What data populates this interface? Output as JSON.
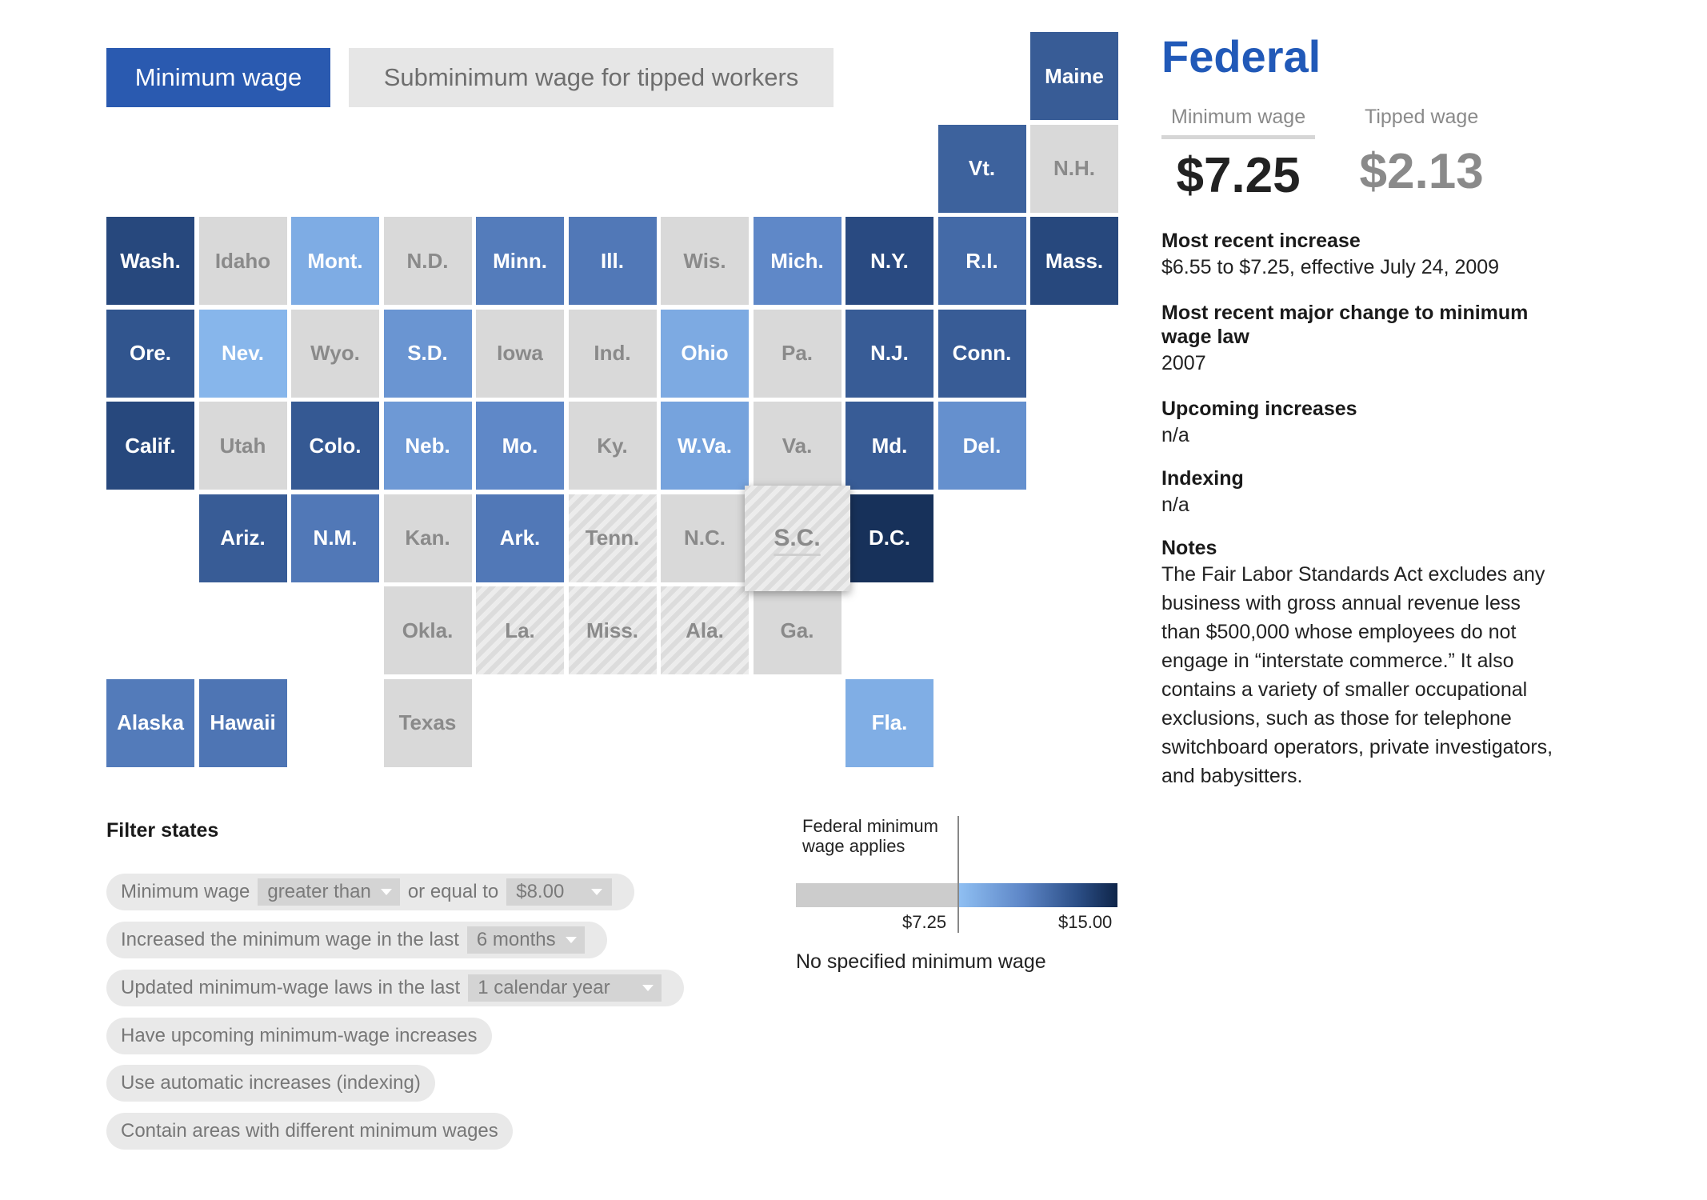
{
  "toggle": {
    "minimum_wage": "Minimum wage",
    "tipped": "Subminimum wage for tipped workers"
  },
  "states": [
    {
      "abbr": "Maine",
      "value": 11.0
    },
    {
      "abbr": "Vt.",
      "value": 10.78
    },
    {
      "abbr": "N.H.",
      "value": 7.25
    },
    {
      "abbr": "Wash.",
      "value": 12.0
    },
    {
      "abbr": "Idaho",
      "value": 7.25
    },
    {
      "abbr": "Mont.",
      "value": 8.5
    },
    {
      "abbr": "N.D.",
      "value": 7.25
    },
    {
      "abbr": "Minn.",
      "value": 9.86
    },
    {
      "abbr": "Ill.",
      "value": 10.0
    },
    {
      "abbr": "Wis.",
      "value": 7.25
    },
    {
      "abbr": "Mich.",
      "value": 9.45
    },
    {
      "abbr": "N.Y.",
      "value": 11.8
    },
    {
      "abbr": "R.I.",
      "value": 10.5
    },
    {
      "abbr": "Mass.",
      "value": 12.0
    },
    {
      "abbr": "Ore.",
      "value": 11.25
    },
    {
      "abbr": "Nev.",
      "value": 8.25
    },
    {
      "abbr": "Wyo.",
      "value": 7.25
    },
    {
      "abbr": "S.D.",
      "value": 9.1
    },
    {
      "abbr": "Iowa",
      "value": 7.25
    },
    {
      "abbr": "Ind.",
      "value": 7.25
    },
    {
      "abbr": "Ohio",
      "value": 8.55
    },
    {
      "abbr": "Pa.",
      "value": 7.25
    },
    {
      "abbr": "N.J.",
      "value": 11.0
    },
    {
      "abbr": "Conn.",
      "value": 11.0
    },
    {
      "abbr": "Calif.",
      "value": 12.0
    },
    {
      "abbr": "Utah",
      "value": 7.25
    },
    {
      "abbr": "Colo.",
      "value": 11.1
    },
    {
      "abbr": "Neb.",
      "value": 9.0
    },
    {
      "abbr": "Mo.",
      "value": 9.45
    },
    {
      "abbr": "Ky.",
      "value": 7.25
    },
    {
      "abbr": "W.Va.",
      "value": 8.75
    },
    {
      "abbr": "Va.",
      "value": 7.25
    },
    {
      "abbr": "Md.",
      "value": 11.0
    },
    {
      "abbr": "Del.",
      "value": 9.25
    },
    {
      "abbr": "Ariz.",
      "value": 11.0
    },
    {
      "abbr": "N.M.",
      "value": 10.0
    },
    {
      "abbr": "Kan.",
      "value": 7.25
    },
    {
      "abbr": "Ark.",
      "value": 10.0
    },
    {
      "abbr": "Tenn.",
      "value": null
    },
    {
      "abbr": "N.C.",
      "value": 7.25
    },
    {
      "abbr": "S.C.",
      "value": null
    },
    {
      "abbr": "D.C.",
      "value": 14.0
    },
    {
      "abbr": "Okla.",
      "value": 7.25
    },
    {
      "abbr": "La.",
      "value": null
    },
    {
      "abbr": "Miss.",
      "value": null
    },
    {
      "abbr": "Ala.",
      "value": null
    },
    {
      "abbr": "Ga.",
      "value": 7.25
    },
    {
      "abbr": "Alaska",
      "value": 9.89
    },
    {
      "abbr": "Hawaii",
      "value": 10.1
    },
    {
      "abbr": "Texas",
      "value": 7.25
    },
    {
      "abbr": "Fla.",
      "value": 8.46
    }
  ],
  "selected_state": "S.C.",
  "colors": {
    "federal": "#d9d9d9",
    "none_hatch": "#dcdcdc",
    "scale_low": "#8fbff2",
    "scale_high": "#0f2549",
    "accent": "#2159b8"
  },
  "filters": {
    "title": "Filter states",
    "row1": {
      "prefix": "Minimum wage",
      "op": "greater than",
      "mid": "or equal to",
      "amount": "$8.00"
    },
    "row2": {
      "prefix": "Increased the minimum wage in the last",
      "period": "6 months"
    },
    "row3": {
      "prefix": "Updated minimum-wage laws in the last",
      "period": "1 calendar year"
    },
    "row4": "Have upcoming minimum-wage increases",
    "row5": "Use automatic increases (indexing)",
    "row6": "Contain areas with different minimum wages"
  },
  "legend": {
    "federal_label_line1": "Federal minimum",
    "federal_label_line2": "wage applies",
    "min": "$7.25",
    "max": "$15.00",
    "none": "No specified minimum wage"
  },
  "panel": {
    "title": "Federal",
    "min_label": "Minimum wage",
    "tipped_label": "Tipped wage",
    "min_value": "$7.25",
    "tipped_value": "$2.13",
    "recent_increase_h": "Most recent increase",
    "recent_increase_v": "$6.55 to $7.25, effective July 24, 2009",
    "major_change_h": "Most recent major change to minimum wage law",
    "major_change_v": "2007",
    "upcoming_h": "Upcoming increases",
    "upcoming_v": "n/a",
    "indexing_h": "Indexing",
    "indexing_v": "n/a",
    "notes_h": "Notes",
    "notes_v": "The Fair Labor Standards Act excludes any business with gross annual revenue less than $500,000 whose employees do not engage in “interstate commerce.” It also contains a variety of smaller occupational exclusions, such as those for telephone switchboard operators, private investigators, and babysitters."
  }
}
